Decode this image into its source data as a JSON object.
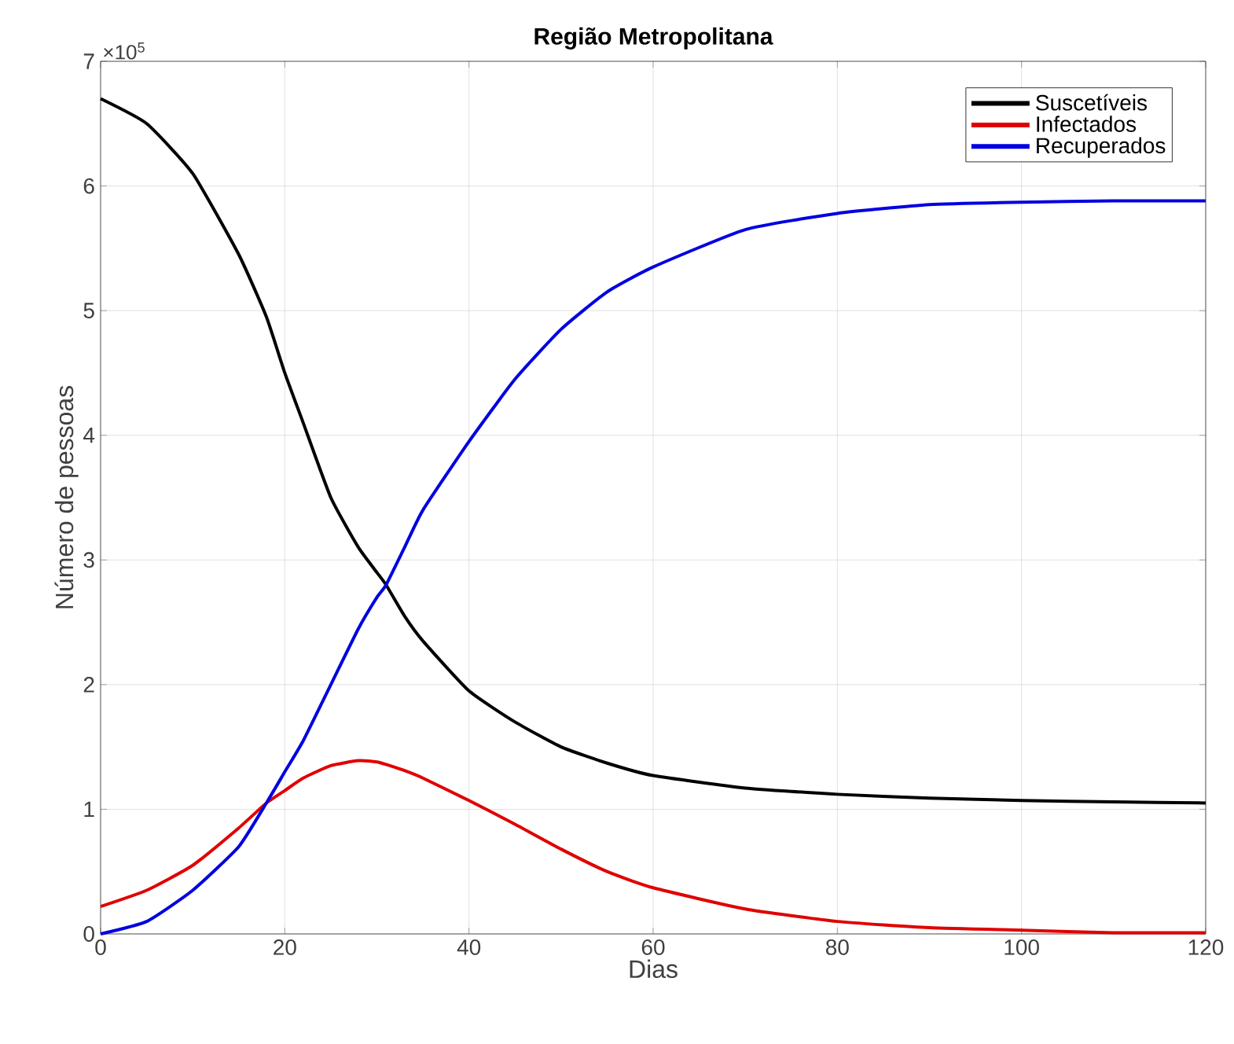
{
  "chart_data": {
    "type": "line",
    "title": "Região Metropolitana",
    "xlabel": "Dias",
    "ylabel": "Número de pessoas",
    "annotations": [
      "×10$^{5}$"
    ],
    "xlim": [
      0,
      120
    ],
    "xticks": [
      0,
      20,
      40,
      60,
      80,
      100,
      120
    ],
    "ylim": [
      0,
      7
    ],
    "yticks": [
      0,
      1,
      2,
      3,
      4,
      5,
      6,
      7
    ],
    "grid": true,
    "legend": "top right",
    "line_style": "solid",
    "x": [
      0,
      5,
      10,
      15,
      18,
      20,
      22,
      25,
      28,
      30,
      31,
      33,
      35,
      40,
      45,
      50,
      55,
      60,
      70,
      80,
      90,
      100,
      110,
      120
    ],
    "series": [
      {
        "name": "Suscetíveis",
        "color": "#000000",
        "values": [
          6.7,
          6.5,
          6.1,
          5.45,
          4.95,
          4.5,
          4.1,
          3.5,
          3.1,
          2.9,
          2.8,
          2.55,
          2.35,
          1.95,
          1.7,
          1.5,
          1.37,
          1.27,
          1.17,
          1.12,
          1.09,
          1.07,
          1.06,
          1.05
        ]
      },
      {
        "name": "Infectados",
        "color": "#e00000",
        "values": [
          0.22,
          0.35,
          0.55,
          0.85,
          1.05,
          1.15,
          1.25,
          1.35,
          1.39,
          1.38,
          1.36,
          1.31,
          1.25,
          1.07,
          0.88,
          0.68,
          0.5,
          0.37,
          0.2,
          0.1,
          0.05,
          0.03,
          0.01,
          0.01
        ]
      },
      {
        "name": "Recuperados",
        "color": "#0000e0",
        "values": [
          0,
          0.1,
          0.35,
          0.7,
          1.05,
          1.3,
          1.55,
          2.0,
          2.45,
          2.7,
          2.8,
          3.1,
          3.4,
          3.95,
          4.45,
          4.85,
          5.15,
          5.35,
          5.65,
          5.78,
          5.85,
          5.87,
          5.88,
          5.88
        ]
      }
    ]
  }
}
